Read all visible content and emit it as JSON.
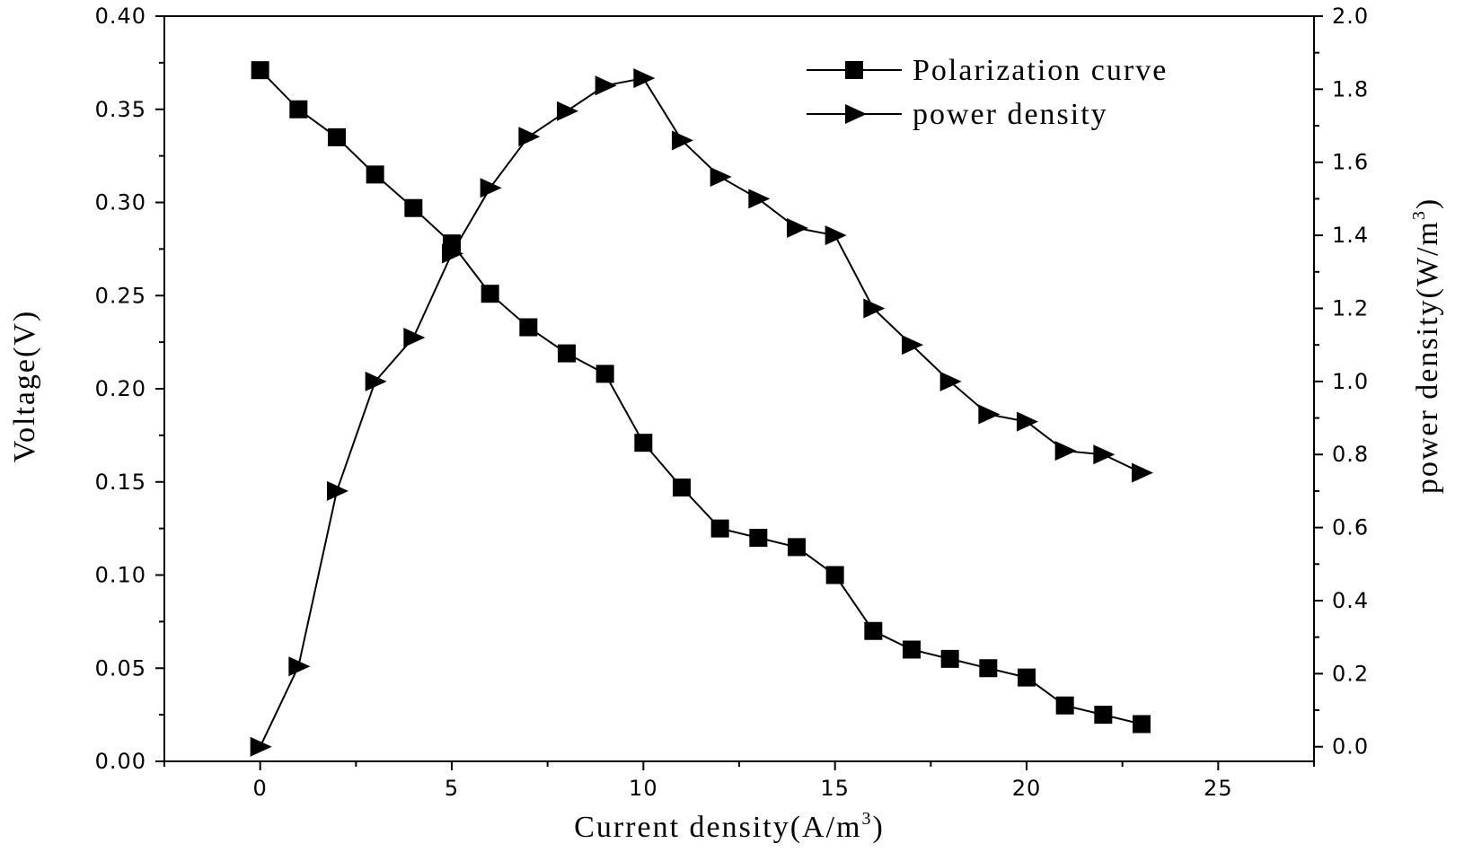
{
  "chart_data": {
    "type": "line",
    "title": "",
    "xlabel": "Current density(A/m",
    "xlabel_sup": "3",
    "xlabel_close": ")",
    "ylabel_left": "Voltage(V)",
    "ylabel_right": "power density(W/m",
    "ylabel_right_sup": "3",
    "ylabel_right_close": ")",
    "xlim": [
      -2.5,
      27.5
    ],
    "ylim_left": [
      0.0,
      0.4
    ],
    "ylim_right": [
      -0.04,
      2.0
    ],
    "x_ticks": [
      0,
      5,
      10,
      15,
      20,
      25
    ],
    "y_left_ticks": [
      "0.00",
      "0.05",
      "0.10",
      "0.15",
      "0.20",
      "0.25",
      "0.30",
      "0.35",
      "0.40"
    ],
    "y_right_ticks": [
      "0.0",
      "0.2",
      "0.4",
      "0.6",
      "0.8",
      "1.0",
      "1.2",
      "1.4",
      "1.6",
      "1.8",
      "2.0"
    ],
    "grid": false,
    "legend_position": "top-right",
    "series": [
      {
        "name": "Polarization curve",
        "axis": "left",
        "marker": "square",
        "x": [
          0,
          1,
          2,
          3,
          4,
          5,
          6,
          7,
          8,
          9,
          10,
          11,
          12,
          13,
          14,
          15,
          16,
          17,
          18,
          19,
          20,
          21,
          22,
          23
        ],
        "values": [
          0.371,
          0.35,
          0.335,
          0.315,
          0.297,
          0.278,
          0.251,
          0.233,
          0.219,
          0.208,
          0.171,
          0.147,
          0.125,
          0.12,
          0.115,
          0.1,
          0.07,
          0.06,
          0.055,
          0.05,
          0.045,
          0.03,
          0.025,
          0.02
        ]
      },
      {
        "name": "power density",
        "axis": "right",
        "marker": "triangle-right",
        "x": [
          0,
          1,
          2,
          3,
          4,
          5,
          6,
          7,
          8,
          9,
          10,
          11,
          12,
          13,
          14,
          15,
          16,
          17,
          18,
          19,
          20,
          21,
          22,
          23
        ],
        "values": [
          0.0,
          0.22,
          0.7,
          1.0,
          1.12,
          1.35,
          1.53,
          1.67,
          1.74,
          1.81,
          1.83,
          1.66,
          1.56,
          1.5,
          1.42,
          1.4,
          1.2,
          1.1,
          1.0,
          0.91,
          0.89,
          0.81,
          0.8,
          0.75
        ]
      }
    ]
  }
}
